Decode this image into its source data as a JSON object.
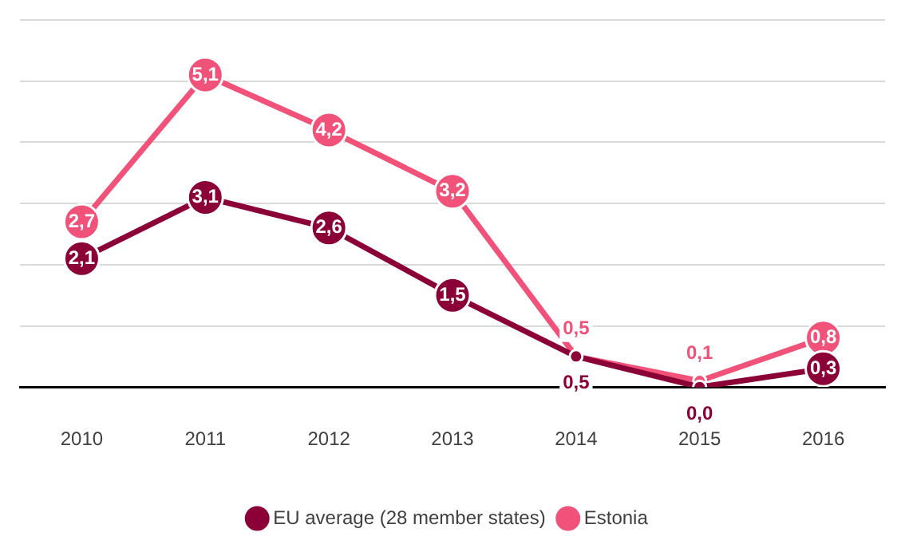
{
  "chart_data": {
    "type": "line",
    "categories": [
      "2010",
      "2011",
      "2012",
      "2013",
      "2014",
      "2015",
      "2016"
    ],
    "series": [
      {
        "name": "EU average (28 member states)",
        "color": "#8b0037",
        "values": [
          2.1,
          3.1,
          2.6,
          1.5,
          0.5,
          0.0,
          0.3
        ],
        "value_labels": [
          "2,1",
          "3,1",
          "2,6",
          "1,5",
          "0,5",
          "0,0",
          "0,3"
        ]
      },
      {
        "name": "Estonia",
        "color": "#f0527a",
        "values": [
          2.7,
          5.1,
          4.2,
          3.2,
          0.5,
          0.1,
          0.8
        ],
        "value_labels": [
          "2,7",
          "5,1",
          "4,2",
          "3,2",
          "0,5",
          "0,1",
          "0,8"
        ]
      }
    ],
    "ylim": [
      0,
      6
    ],
    "yticks": [
      {
        "value": 0,
        "label": null
      },
      {
        "value": 1,
        "label": null
      },
      {
        "value": 2,
        "label": null
      },
      {
        "value": 3,
        "label": null
      },
      {
        "value": 4,
        "label": null
      },
      {
        "value": 5,
        "label": null
      },
      {
        "value": 6,
        "label": null
      }
    ],
    "tick_labels": "x",
    "grid": "y",
    "legend": "bottom",
    "marker": "circle",
    "line_style": "solid"
  }
}
